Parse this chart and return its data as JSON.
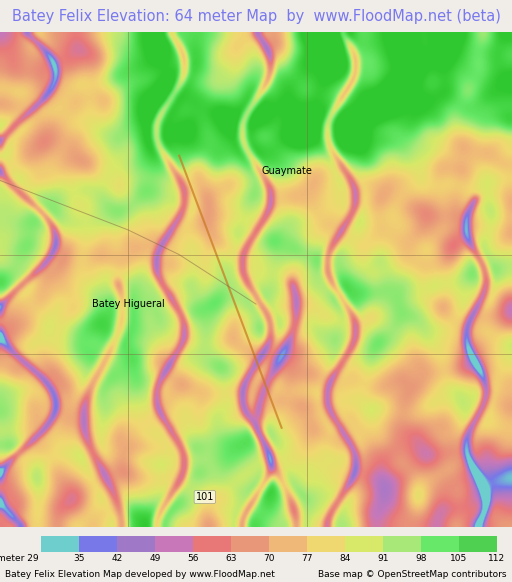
{
  "title": "Batey Felix Elevation: 64 meter Map  by  www.FloodMap.net (beta)",
  "title_color": "#7878f0",
  "title_fontsize": 10.5,
  "footer_left": "Batey Felix Elevation Map developed by www.FloodMap.net",
  "footer_right": "Base map © OpenStreetMap contributors",
  "footer_fontsize": 7.5,
  "colorbar_label": "meter",
  "colorbar_ticks": [
    29,
    35,
    42,
    49,
    56,
    63,
    70,
    77,
    84,
    91,
    98,
    105,
    112
  ],
  "colorbar_colors": [
    "#6ecece",
    "#7878e8",
    "#a878c8",
    "#c878b8",
    "#e87878",
    "#e89878",
    "#f0b878",
    "#f0d870",
    "#d8e868",
    "#a8e878",
    "#68e868"
  ],
  "bg_color": "#f0ece8",
  "map_bg": "#f5c090",
  "fig_width": 5.12,
  "fig_height": 5.82,
  "dpi": 100,
  "label_guaymate": "Guaymate",
  "label_batey_higueral": "Batey Higueral",
  "label_101": "101"
}
